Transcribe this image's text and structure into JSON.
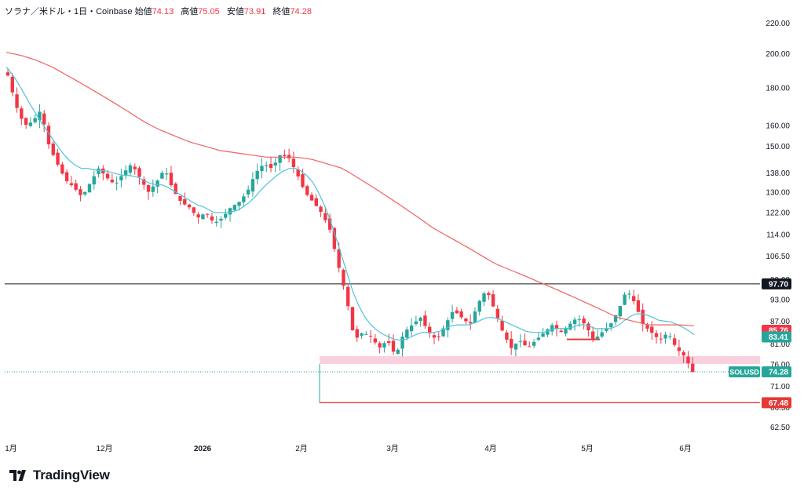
{
  "header": {
    "symbol": "ソラナ／米ドル・1日・Coinbase",
    "open_label": "始値",
    "open_value": "74.13",
    "high_label": "高値",
    "high_value": "75.05",
    "low_label": "安値",
    "low_value": "73.91",
    "close_label": "終値",
    "close_value": "74.28"
  },
  "brand": {
    "name": "TradingView",
    "logo_icon": "tradingview-logo-icon"
  },
  "colors": {
    "up": "#26a69a",
    "down": "#f23645",
    "ma_fast": "#4fc3d9",
    "ma_slow": "#f06060",
    "hline": "#131722",
    "zone": "#f8c9d8",
    "support": "#e53935",
    "label_ma_fast": "#26a69a",
    "label_ma_slow": "#f23645"
  },
  "chart_data": {
    "type": "candlestick",
    "ylim": [
      60.5,
      232
    ],
    "y_scale": "log",
    "y_ticks": [
      "220.00",
      "200.00",
      "180.00",
      "160.00",
      "150.00",
      "138.00",
      "130.00",
      "122.00",
      "114.00",
      "106.50",
      "99.00",
      "93.00",
      "87.00",
      "81.00",
      "76.00",
      "71.00",
      "66.50",
      "62.50"
    ],
    "x_ticks": [
      {
        "label": "1月",
        "bold": false
      },
      {
        "label": "12月",
        "bold": false
      },
      {
        "label": "2026",
        "bold": true
      },
      {
        "label": "2月",
        "bold": false
      },
      {
        "label": "3月",
        "bold": false
      },
      {
        "label": "4月",
        "bold": false
      },
      {
        "label": "5月",
        "bold": false
      },
      {
        "label": "6月",
        "bold": false
      }
    ],
    "close_path": [
      187,
      170,
      160,
      162,
      168,
      150,
      142,
      135,
      132,
      128,
      134,
      140,
      136,
      133,
      138,
      142,
      136,
      130,
      134,
      140,
      131,
      126,
      124,
      120,
      122,
      118,
      120,
      124,
      126,
      130,
      138,
      142,
      140,
      146,
      145,
      138,
      130,
      126,
      122,
      116,
      104,
      94,
      82,
      84,
      83,
      80,
      82,
      78,
      84,
      86,
      88,
      84,
      82,
      86,
      90,
      88,
      86,
      92,
      96,
      90,
      84,
      80,
      82,
      80,
      82,
      84,
      86,
      84,
      86,
      88,
      86,
      82,
      84,
      86,
      90,
      96,
      92,
      86,
      84,
      82,
      84,
      80,
      78,
      74.28
    ],
    "ma_fast_path": [
      192,
      186,
      178,
      170,
      163,
      157,
      151,
      146,
      142,
      140,
      140,
      139,
      139,
      138,
      137,
      137,
      136,
      134,
      133,
      133,
      131,
      129,
      127,
      125,
      124,
      122,
      122,
      122,
      123,
      125,
      128,
      132,
      135,
      138,
      140,
      140,
      138,
      134,
      128,
      120,
      111,
      102,
      94,
      89,
      86,
      84,
      83,
      82,
      82,
      83,
      84,
      84,
      84,
      85,
      86,
      86,
      86,
      87,
      88,
      88,
      87,
      86,
      85,
      84,
      84,
      84,
      85,
      85,
      85,
      86,
      86,
      85,
      85,
      85,
      86,
      88,
      89,
      89,
      88,
      87,
      87,
      86,
      85,
      83.41
    ],
    "ma_slow_path": [
      201,
      199,
      196,
      192,
      187,
      182,
      177,
      172,
      167,
      162,
      158,
      155,
      152,
      150,
      148,
      147,
      146,
      145,
      145,
      145,
      144,
      142,
      140,
      136,
      132,
      128,
      124,
      120,
      116,
      113,
      110,
      107,
      104,
      102,
      100,
      98,
      96,
      94,
      92,
      90,
      88,
      87,
      86,
      86,
      86,
      85.76
    ],
    "horizontal_line": {
      "value": 97.7,
      "label": "97.70"
    },
    "ma_fast_label": {
      "value": 83.41,
      "label": "83.41"
    },
    "ma_slow_label": {
      "value": 85.76,
      "label": "85.76"
    },
    "last_price": {
      "name": "SOLUSD",
      "value": 74.28,
      "label": "74.28"
    },
    "support_line": {
      "value": 67.48,
      "label": "67.48"
    },
    "support_zone": [
      76.1,
      78.0
    ],
    "short_mark": {
      "value": 82.2
    }
  }
}
